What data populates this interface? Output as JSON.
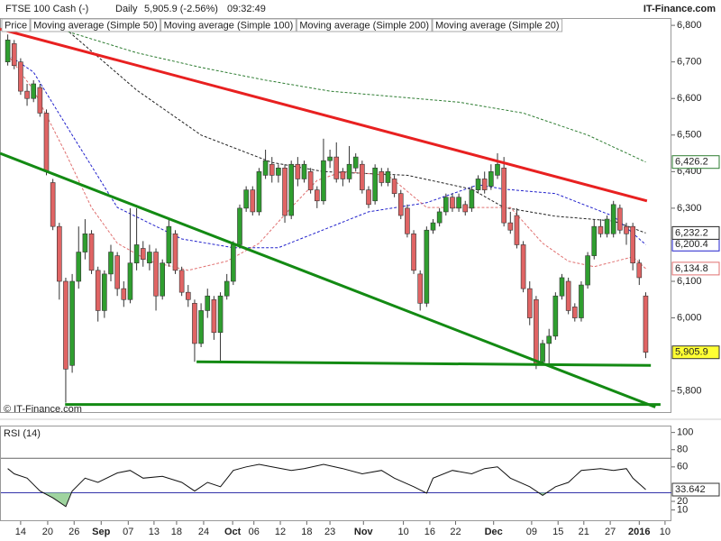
{
  "header": {
    "symbol": "FTSE 100 Cash (-)",
    "period": "Daily",
    "last": "5,905.9 (-2.56%)",
    "time": "09:32:49",
    "source": "IT-Finance.com"
  },
  "chart_data": [
    {
      "type": "candlestick",
      "candle_name": "Price",
      "up_color": "#2f9e2f",
      "down_color": "#e06464",
      "copyright": "© IT-Finance.com",
      "ylim": [
        5740,
        6820
      ],
      "yticks": [
        {
          "value": 6800,
          "label": "6,800"
        },
        {
          "value": 6700,
          "label": "6,700"
        },
        {
          "value": 6600,
          "label": "6,600"
        },
        {
          "value": 6500,
          "label": "6,500"
        },
        {
          "value": 6400,
          "label": "6,400"
        },
        {
          "value": 6300,
          "label": "6,300"
        },
        {
          "value": 6100,
          "label": "6,100"
        },
        {
          "value": 6000,
          "label": "6,000"
        },
        {
          "value": 5800,
          "label": "5,800"
        }
      ],
      "candles": [
        [
          6700,
          6775,
          6690,
          6760
        ],
        [
          6750,
          6760,
          6680,
          6690
        ],
        [
          6700,
          6710,
          6610,
          6620
        ],
        [
          6620,
          6640,
          6580,
          6600
        ],
        [
          6600,
          6650,
          6590,
          6640
        ],
        [
          6630,
          6640,
          6550,
          6560
        ],
        [
          6560,
          6570,
          6390,
          6400
        ],
        [
          6370,
          6380,
          6240,
          6250
        ],
        [
          6250,
          6260,
          6050,
          6100
        ],
        [
          6100,
          6110,
          5768,
          5860
        ],
        [
          5870,
          6120,
          5850,
          6100
        ],
        [
          6100,
          6250,
          6080,
          6180
        ],
        [
          6180,
          6270,
          6160,
          6230
        ],
        [
          6230,
          6240,
          6120,
          6130
        ],
        [
          6130,
          6140,
          5990,
          6020
        ],
        [
          6020,
          6130,
          6000,
          6120
        ],
        [
          6120,
          6200,
          6100,
          6180
        ],
        [
          6170,
          6180,
          6060,
          6080
        ],
        [
          6080,
          6100,
          6030,
          6050
        ],
        [
          6050,
          6300,
          6040,
          6150
        ],
        [
          6150,
          6300,
          6130,
          6200
        ],
        [
          6190,
          6210,
          6140,
          6160
        ],
        [
          6150,
          6200,
          6130,
          6180
        ],
        [
          6180,
          6190,
          6020,
          6060
        ],
        [
          6060,
          6160,
          6050,
          6150
        ],
        [
          6150,
          6270,
          6140,
          6250
        ],
        [
          6230,
          6240,
          6120,
          6130
        ],
        [
          6130,
          6140,
          6060,
          6070
        ],
        [
          6070,
          6090,
          6030,
          6050
        ],
        [
          6040,
          6050,
          5880,
          5930
        ],
        [
          5930,
          6040,
          5920,
          6020
        ],
        [
          6020,
          6080,
          6000,
          6060
        ],
        [
          6050,
          6060,
          5940,
          5960
        ],
        [
          5960,
          6070,
          5880,
          6060
        ],
        [
          6060,
          6120,
          6050,
          6100
        ],
        [
          6100,
          6210,
          6090,
          6200
        ],
        [
          6200,
          6310,
          6190,
          6300
        ],
        [
          6300,
          6360,
          6290,
          6350
        ],
        [
          6350,
          6360,
          6280,
          6290
        ],
        [
          6290,
          6410,
          6280,
          6400
        ],
        [
          6390,
          6460,
          6380,
          6430
        ],
        [
          6420,
          6440,
          6370,
          6390
        ],
        [
          6390,
          6420,
          6370,
          6410
        ],
        [
          6410,
          6420,
          6260,
          6280
        ],
        [
          6280,
          6430,
          6270,
          6420
        ],
        [
          6420,
          6440,
          6360,
          6380
        ],
        [
          6380,
          6430,
          6370,
          6420
        ],
        [
          6400,
          6410,
          6340,
          6350
        ],
        [
          6350,
          6360,
          6300,
          6320
        ],
        [
          6320,
          6490,
          6310,
          6430
        ],
        [
          6430,
          6460,
          6410,
          6440
        ],
        [
          6440,
          6480,
          6370,
          6380
        ],
        [
          6400,
          6410,
          6360,
          6380
        ],
        [
          6380,
          6470,
          6370,
          6420
        ],
        [
          6410,
          6450,
          6400,
          6440
        ],
        [
          6420,
          6430,
          6340,
          6350
        ],
        [
          6350,
          6360,
          6300,
          6310
        ],
        [
          6320,
          6420,
          6310,
          6410
        ],
        [
          6400,
          6410,
          6360,
          6370
        ],
        [
          6370,
          6410,
          6360,
          6400
        ],
        [
          6380,
          6390,
          6330,
          6340
        ],
        [
          6340,
          6350,
          6270,
          6280
        ],
        [
          6300,
          6310,
          6220,
          6230
        ],
        [
          6230,
          6240,
          6120,
          6130
        ],
        [
          6120,
          6130,
          6020,
          6040
        ],
        [
          6040,
          6250,
          6030,
          6240
        ],
        [
          6240,
          6270,
          6230,
          6260
        ],
        [
          6260,
          6300,
          6250,
          6290
        ],
        [
          6290,
          6340,
          6280,
          6330
        ],
        [
          6330,
          6340,
          6290,
          6300
        ],
        [
          6300,
          6340,
          6290,
          6330
        ],
        [
          6310,
          6320,
          6280,
          6290
        ],
        [
          6300,
          6360,
          6290,
          6350
        ],
        [
          6350,
          6390,
          6340,
          6380
        ],
        [
          6380,
          6400,
          6340,
          6350
        ],
        [
          6360,
          6420,
          6350,
          6400
        ],
        [
          6390,
          6450,
          6380,
          6420
        ],
        [
          6410,
          6440,
          6250,
          6260
        ],
        [
          6260,
          6290,
          6230,
          6240
        ],
        [
          6280,
          6300,
          6190,
          6200
        ],
        [
          6200,
          6210,
          6070,
          6080
        ],
        [
          6080,
          6100,
          5980,
          6000
        ],
        [
          6050,
          6060,
          5860,
          5870
        ],
        [
          5880,
          5940,
          5870,
          5930
        ],
        [
          5930,
          5970,
          5870,
          5950
        ],
        [
          5950,
          6070,
          5940,
          6060
        ],
        [
          6060,
          6120,
          6050,
          6110
        ],
        [
          6100,
          6110,
          6010,
          6020
        ],
        [
          6030,
          6040,
          5990,
          6000
        ],
        [
          6000,
          6100,
          5990,
          6090
        ],
        [
          6090,
          6180,
          6080,
          6170
        ],
        [
          6170,
          6270,
          6160,
          6250
        ],
        [
          6250,
          6270,
          6220,
          6230
        ],
        [
          6230,
          6280,
          6220,
          6270
        ],
        [
          6230,
          6320,
          6220,
          6310
        ],
        [
          6300,
          6310,
          6230,
          6240
        ],
        [
          6250,
          6260,
          6200,
          6230
        ],
        [
          6250,
          6260,
          6130,
          6150
        ],
        [
          6150,
          6160,
          6090,
          6110
        ],
        [
          6060,
          6070,
          5890,
          5905.9
        ]
      ],
      "last_label": "5,905.9",
      "series": [
        {
          "name": "Moving average (Simple 50)",
          "color": "#2222cc",
          "x": [
            0,
            4,
            10,
            17,
            27,
            35,
            42,
            49,
            56,
            65,
            73,
            77,
            85,
            94,
            99
          ],
          "values": [
            6720,
            6672,
            6500,
            6302,
            6216,
            6192,
            6192,
            6241,
            6290,
            6315,
            6364,
            6352,
            6340,
            6278,
            6200.4
          ],
          "last_label": "6,200.4"
        },
        {
          "name": "Moving average (Simple 100)",
          "color": "#222222",
          "x": [
            9,
            20,
            30,
            41,
            49,
            62,
            72,
            77,
            85,
            94,
            99
          ],
          "values": [
            6790,
            6623,
            6500,
            6425,
            6400,
            6390,
            6352,
            6302,
            6278,
            6265,
            6232.2
          ],
          "last_label": "6,232.2"
        },
        {
          "name": "Moving average (Simple 200)",
          "color": "#2e7d32",
          "x": [
            8,
            20,
            30,
            40,
            50,
            60,
            70,
            80,
            90,
            99
          ],
          "values": [
            6790,
            6725,
            6685,
            6650,
            6620,
            6605,
            6590,
            6560,
            6500,
            6426.2
          ],
          "last_label": "6,426.2"
        },
        {
          "name": "Moving average (Simple 20)",
          "color": "#e07070",
          "x": [
            0,
            4,
            9,
            13,
            17,
            22,
            28,
            34,
            39,
            44,
            48,
            52,
            59,
            65,
            69,
            74,
            78,
            83,
            87,
            91,
            97,
            99
          ],
          "values": [
            6720,
            6623,
            6450,
            6302,
            6204,
            6155,
            6130,
            6155,
            6204,
            6302,
            6376,
            6400,
            6390,
            6302,
            6302,
            6302,
            6302,
            6204,
            6155,
            6140,
            6167,
            6134.8
          ],
          "last_label": "6,134.8"
        }
      ],
      "trend_lines": [
        {
          "color": "#e82020",
          "x": [
            -1.2,
            99.2
          ],
          "y": [
            6790,
            6320
          ]
        },
        {
          "color": "#138a13",
          "x": [
            -1.2,
            100.5
          ],
          "y": [
            6450,
            5756
          ]
        },
        {
          "color": "#138a13",
          "x": [
            29.3,
            99.8
          ],
          "y": [
            5880,
            5870
          ]
        },
        {
          "color": "#138a13",
          "x": [
            8.9,
            101.3
          ],
          "y": [
            5763,
            5763
          ]
        }
      ]
    },
    {
      "type": "line",
      "title": "RSI (14)",
      "ylim": [
        -3,
        108
      ],
      "yticks": [
        100,
        80,
        60,
        20,
        10
      ],
      "levels": [
        70,
        30
      ],
      "below_fill": "#9fd49f",
      "series": [
        {
          "name": "RSI",
          "color": "#111111",
          "x": [
            0,
            1,
            3,
            5,
            7,
            9,
            10,
            12,
            14,
            17,
            19,
            21,
            24,
            27,
            29,
            31,
            33,
            35,
            37,
            39,
            41,
            44,
            46,
            49,
            52,
            55,
            58,
            60,
            63,
            65,
            66,
            69,
            72,
            74,
            76,
            78,
            81,
            83,
            85,
            87,
            89,
            92,
            94,
            96,
            97,
            99
          ],
          "values": [
            58,
            52,
            47,
            32,
            24,
            14,
            32,
            47,
            42,
            53,
            56,
            47,
            49,
            42,
            32,
            42,
            37,
            56,
            60,
            63,
            60,
            56,
            58,
            63,
            58,
            52,
            56,
            47,
            37,
            29.5,
            47,
            56,
            52,
            58,
            60,
            47,
            37,
            27,
            37,
            42,
            56,
            58,
            56,
            58,
            47,
            33.642
          ],
          "last_label": "33.642"
        }
      ],
      "xticks": [
        {
          "value": 2,
          "label": "14"
        },
        {
          "value": 6.2,
          "label": "20"
        },
        {
          "value": 10.3,
          "label": "26"
        },
        {
          "value": 14.5,
          "label": "Sep"
        },
        {
          "value": 18.7,
          "label": "07"
        },
        {
          "value": 22.7,
          "label": "13"
        },
        {
          "value": 26.2,
          "label": "18"
        },
        {
          "value": 30.4,
          "label": "24"
        },
        {
          "value": 34.9,
          "label": "Oct"
        },
        {
          "value": 38.2,
          "label": "06"
        },
        {
          "value": 42.3,
          "label": "12"
        },
        {
          "value": 46.4,
          "label": "18"
        },
        {
          "value": 50,
          "label": "23"
        },
        {
          "value": 55.2,
          "label": "Nov"
        },
        {
          "value": 61.4,
          "label": "10"
        },
        {
          "value": 65.5,
          "label": "16"
        },
        {
          "value": 69.5,
          "label": "22"
        },
        {
          "value": 75.4,
          "label": "Dec"
        },
        {
          "value": 81.3,
          "label": "09"
        },
        {
          "value": 85.4,
          "label": "15"
        },
        {
          "value": 89.4,
          "label": "21"
        },
        {
          "value": 93.5,
          "label": "27"
        },
        {
          "value": 98,
          "label": "2016"
        },
        {
          "value": 102,
          "label": "10"
        }
      ]
    }
  ]
}
